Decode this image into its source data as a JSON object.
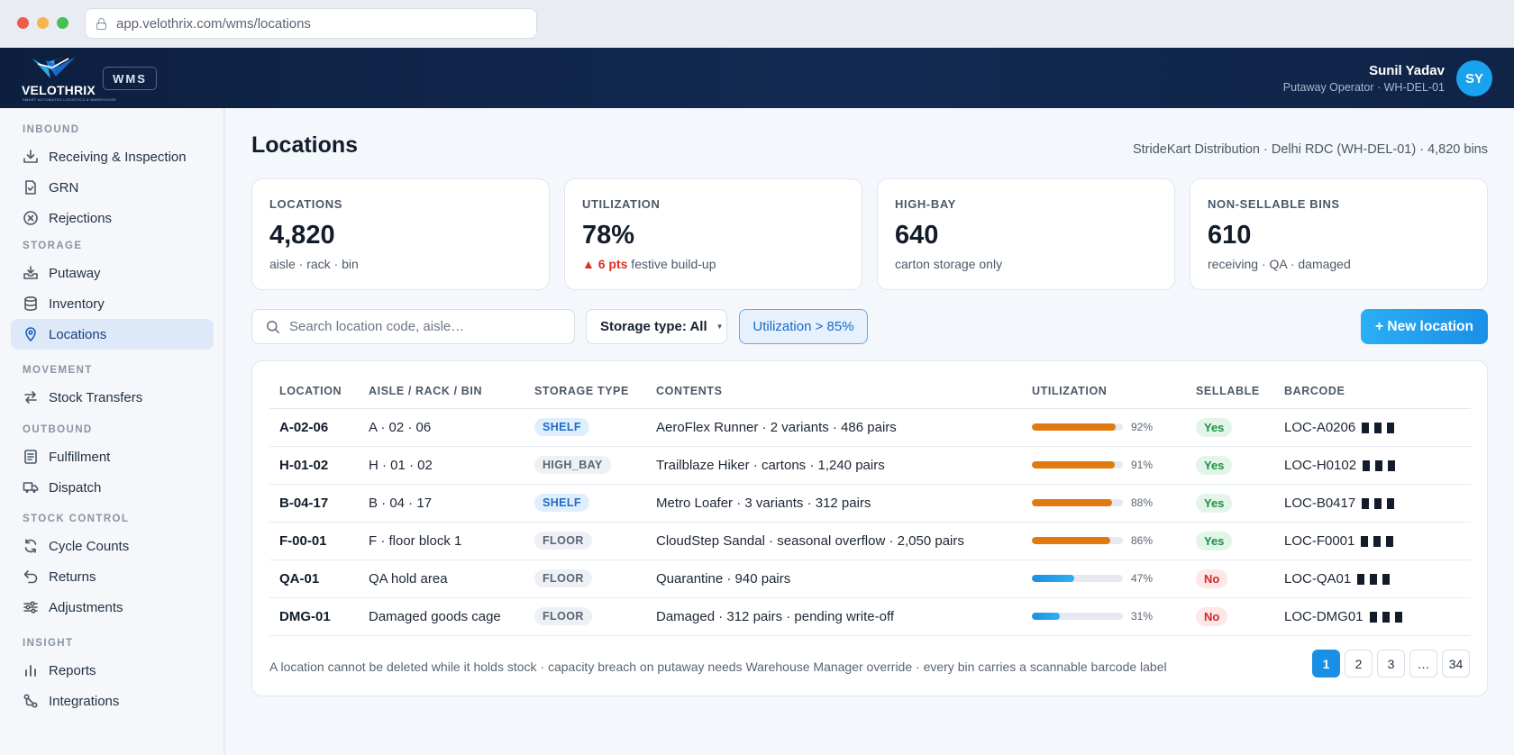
{
  "browser": {
    "url": "app.velothrix.com/wms/locations"
  },
  "header": {
    "logo_text": "VELOTHRIX",
    "logo_tagline": "SMART AUTOMATED LOGISTICS & WAREHOUSE",
    "module_badge": "WMS",
    "user_name": "Sunil Yadav",
    "user_role": "Putaway Operator · WH-DEL-01",
    "avatar_initials": "SY"
  },
  "sidebar": {
    "sections": [
      {
        "title": "INBOUND",
        "items": [
          {
            "label": "Receiving & Inspection",
            "icon": "inbox-download-icon"
          },
          {
            "label": "GRN",
            "icon": "document-check-icon"
          },
          {
            "label": "Rejections",
            "icon": "circle-x-icon"
          }
        ]
      },
      {
        "title": "STORAGE",
        "items": [
          {
            "label": "Putaway",
            "icon": "tray-in-icon"
          },
          {
            "label": "Inventory",
            "icon": "database-icon"
          },
          {
            "label": "Locations",
            "icon": "map-pin-icon",
            "active": true
          }
        ]
      },
      {
        "title": "MOVEMENT",
        "items": [
          {
            "label": "Stock Transfers",
            "icon": "arrows-swap-icon"
          }
        ]
      },
      {
        "title": "OUTBOUND",
        "items": [
          {
            "label": "Fulfillment",
            "icon": "list-document-icon"
          },
          {
            "label": "Dispatch",
            "icon": "truck-icon"
          }
        ]
      },
      {
        "title": "STOCK CONTROL",
        "items": [
          {
            "label": "Cycle Counts",
            "icon": "refresh-icon"
          },
          {
            "label": "Returns",
            "icon": "undo-arrow-icon"
          },
          {
            "label": "Adjustments",
            "icon": "sliders-icon"
          }
        ]
      },
      {
        "title": "INSIGHT",
        "items": [
          {
            "label": "Reports",
            "icon": "bar-chart-icon"
          },
          {
            "label": "Integrations",
            "icon": "integration-nodes-icon"
          }
        ]
      }
    ]
  },
  "page": {
    "title": "Locations",
    "meta": "StrideKart Distribution · Delhi RDC (WH-DEL-01) · 4,820 bins"
  },
  "kpis": [
    {
      "label": "LOCATIONS",
      "value": "4,820",
      "sub": "aisle · rack · bin"
    },
    {
      "label": "UTILIZATION",
      "value": "78%",
      "delta": "▲ 6 pts",
      "sub": " festive build-up"
    },
    {
      "label": "HIGH-BAY",
      "value": "640",
      "sub": "carton storage only"
    },
    {
      "label": "NON-SELLABLE BINS",
      "value": "610",
      "sub": "receiving · QA · damaged"
    }
  ],
  "toolbar": {
    "search_placeholder": "Search location code, aisle…",
    "storage_filter": "Storage type: All",
    "util_chip": "Utilization > 85%",
    "new_button": "+ New location"
  },
  "table": {
    "columns": [
      "LOCATION",
      "AISLE / RACK / BIN",
      "STORAGE TYPE",
      "CONTENTS",
      "UTILIZATION",
      "SELLABLE",
      "BARCODE"
    ],
    "rows": [
      {
        "location": "A-02-06",
        "arb": "A · 02 · 06",
        "type": "SHELF",
        "contents": "AeroFlex Runner · 2 variants · 486 pairs",
        "util": 92,
        "util_label": "92%",
        "sellable": "Yes",
        "barcode": "LOC-A0206"
      },
      {
        "location": "H-01-02",
        "arb": "H · 01 · 02",
        "type": "HIGH_BAY",
        "contents": "Trailblaze Hiker · cartons · 1,240 pairs",
        "util": 91,
        "util_label": "91%",
        "sellable": "Yes",
        "barcode": "LOC-H0102"
      },
      {
        "location": "B-04-17",
        "arb": "B · 04 · 17",
        "type": "SHELF",
        "contents": "Metro Loafer · 3 variants · 312 pairs",
        "util": 88,
        "util_label": "88%",
        "sellable": "Yes",
        "barcode": "LOC-B0417"
      },
      {
        "location": "F-00-01",
        "arb": "F · floor block 1",
        "type": "FLOOR",
        "contents": "CloudStep Sandal · seasonal overflow · 2,050 pairs",
        "util": 86,
        "util_label": "86%",
        "sellable": "Yes",
        "barcode": "LOC-F0001"
      },
      {
        "location": "QA-01",
        "arb": "QA hold area",
        "type": "FLOOR",
        "contents": "Quarantine · 940 pairs",
        "util": 47,
        "util_label": "47%",
        "sellable": "No",
        "barcode": "LOC-QA01"
      },
      {
        "location": "DMG-01",
        "arb": "Damaged goods cage",
        "type": "FLOOR",
        "contents": "Damaged · 312 pairs · pending write-off",
        "util": 31,
        "util_label": "31%",
        "sellable": "No",
        "barcode": "LOC-DMG01"
      }
    ],
    "footnote": "A location cannot be deleted while it holds stock · capacity breach on putaway needs Warehouse Manager override · every bin carries a scannable barcode label",
    "pages": [
      "1",
      "2",
      "3",
      "…",
      "34"
    ],
    "current_page": "1"
  },
  "colors": {
    "accent": "#1a8fe6",
    "high_util": "#e07a10",
    "header_bg": "#0d1f3f"
  }
}
